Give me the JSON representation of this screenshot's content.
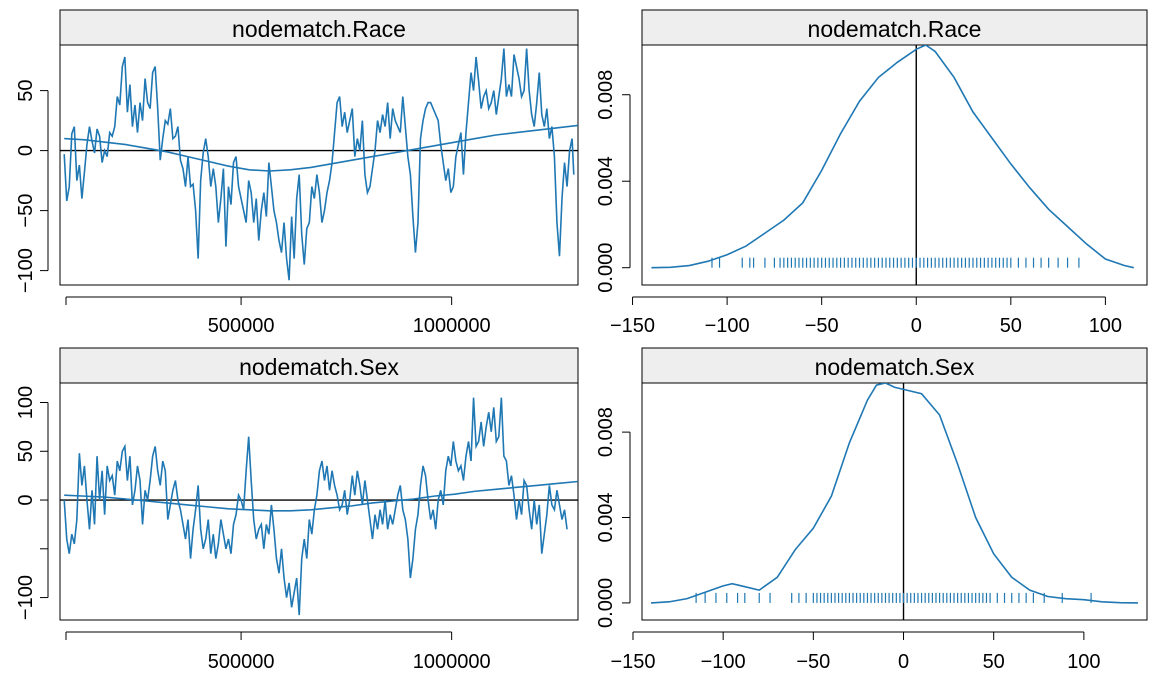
{
  "line_color": "#1f78b4",
  "strip_color": "#eeeeee",
  "chart_data": [
    {
      "type": "line",
      "title": "nodematch.Race",
      "xlim": [
        70000,
        1300000
      ],
      "ylim": [
        -112,
        88
      ],
      "x_ticks": [
        500000,
        1000000
      ],
      "x_tick_labels": [
        "500000",
        "1000000"
      ],
      "y_ticks": [
        -100,
        -50,
        0,
        50
      ],
      "y_tick_labels": [
        "−100",
        "−50",
        "0",
        "50"
      ],
      "x": [
        80000,
        86000,
        92000,
        98000,
        104000,
        110000,
        116000,
        122000,
        128000,
        134000,
        140000,
        146000,
        152000,
        158000,
        164000,
        170000,
        176000,
        182000,
        188000,
        194000,
        200000,
        206000,
        212000,
        218000,
        224000,
        230000,
        236000,
        242000,
        248000,
        254000,
        260000,
        266000,
        272000,
        278000,
        284000,
        290000,
        296000,
        302000,
        308000,
        314000,
        320000,
        326000,
        332000,
        338000,
        344000,
        350000,
        356000,
        362000,
        368000,
        374000,
        380000,
        386000,
        392000,
        398000,
        404000,
        410000,
        416000,
        422000,
        428000,
        434000,
        440000,
        446000,
        452000,
        458000,
        464000,
        470000,
        476000,
        482000,
        488000,
        494000,
        500000,
        506000,
        512000,
        518000,
        524000,
        530000,
        536000,
        542000,
        548000,
        554000,
        560000,
        566000,
        572000,
        578000,
        584000,
        590000,
        596000,
        602000,
        608000,
        614000,
        620000,
        626000,
        632000,
        638000,
        644000,
        650000,
        656000,
        662000,
        668000,
        674000,
        680000,
        686000,
        692000,
        698000,
        704000,
        710000,
        716000,
        722000,
        728000,
        734000,
        740000,
        746000,
        752000,
        758000,
        764000,
        770000,
        776000,
        782000,
        788000,
        794000,
        800000,
        806000,
        812000,
        818000,
        824000,
        830000,
        836000,
        842000,
        848000,
        854000,
        860000,
        866000,
        872000,
        878000,
        884000,
        890000,
        896000,
        902000,
        908000,
        914000,
        920000,
        926000,
        932000,
        938000,
        944000,
        950000,
        956000,
        962000,
        968000,
        974000,
        980000,
        986000,
        992000,
        998000,
        1004000,
        1010000,
        1016000,
        1022000,
        1028000,
        1034000,
        1040000,
        1046000,
        1052000,
        1058000,
        1064000,
        1070000,
        1076000,
        1082000,
        1088000,
        1094000,
        1100000,
        1106000,
        1112000,
        1118000,
        1124000,
        1130000,
        1136000,
        1142000,
        1148000,
        1154000,
        1160000,
        1166000,
        1172000,
        1178000,
        1184000,
        1190000,
        1196000,
        1202000,
        1208000,
        1214000,
        1220000,
        1226000,
        1232000,
        1238000,
        1244000,
        1250000,
        1256000,
        1262000,
        1268000,
        1274000,
        1280000,
        1286000,
        1290000
      ],
      "trace": [
        -3,
        -42,
        -30,
        14,
        20,
        -25,
        -12,
        -40,
        -18,
        5,
        20,
        8,
        -2,
        18,
        12,
        -10,
        0,
        -5,
        15,
        12,
        20,
        45,
        38,
        70,
        78,
        32,
        55,
        20,
        38,
        15,
        40,
        25,
        60,
        40,
        35,
        65,
        70,
        35,
        -8,
        10,
        25,
        22,
        35,
        10,
        12,
        20,
        -8,
        -15,
        -30,
        -5,
        -30,
        -28,
        -50,
        -90,
        -25,
        -2,
        10,
        -5,
        -30,
        -15,
        -30,
        -60,
        -40,
        -15,
        -80,
        -30,
        -45,
        -10,
        -5,
        -30,
        -40,
        -50,
        -60,
        -25,
        -35,
        -60,
        -40,
        -75,
        -50,
        -35,
        -55,
        -10,
        -30,
        -50,
        -60,
        -75,
        -85,
        -60,
        -90,
        -108,
        -55,
        -90,
        -40,
        -20,
        -70,
        -95,
        -65,
        -60,
        -30,
        -40,
        -20,
        -35,
        -60,
        -50,
        -35,
        -25,
        -10,
        15,
        40,
        45,
        20,
        32,
        15,
        25,
        35,
        -5,
        10,
        0,
        25,
        -20,
        -35,
        -30,
        -15,
        0,
        25,
        15,
        30,
        20,
        40,
        10,
        35,
        25,
        20,
        15,
        45,
        20,
        -5,
        -20,
        -55,
        -85,
        -60,
        10,
        25,
        35,
        40,
        40,
        35,
        30,
        25,
        5,
        -10,
        -25,
        -15,
        -35,
        -30,
        -5,
        5,
        15,
        -20,
        15,
        40,
        65,
        50,
        78,
        58,
        35,
        45,
        50,
        35,
        40,
        50,
        30,
        45,
        60,
        85,
        45,
        55,
        45,
        80,
        70,
        60,
        45,
        50,
        85,
        50,
        30,
        20,
        40,
        65,
        30,
        20,
        35,
        10,
        20,
        -5,
        -60,
        -88,
        -40,
        -10,
        -30,
        0,
        10,
        -20,
        -40,
        -15,
        -20
      ],
      "smooth": [
        10,
        9,
        7,
        5,
        2,
        -1,
        -5,
        -9,
        -13,
        -16,
        -17,
        -16,
        -14,
        -11,
        -8,
        -5,
        -2,
        1,
        4,
        7,
        10,
        13,
        15,
        17,
        19,
        21
      ],
      "smooth_x_step": 48800,
      "rug": []
    },
    {
      "type": "area",
      "title": "nodematch.Race",
      "xlim": [
        -145,
        122
      ],
      "ylim": [
        -0.0008,
        0.0103
      ],
      "x_ticks": [
        -150,
        -100,
        -50,
        0,
        50,
        100
      ],
      "x_tick_labels": [
        "−150",
        "−100",
        "−50",
        "0",
        "50",
        "100"
      ],
      "y_ticks": [
        0,
        0.004,
        0.008
      ],
      "y_tick_labels": [
        "0.000",
        "0.004",
        "0.008"
      ],
      "density_x": [
        -140,
        -130,
        -120,
        -110,
        -100,
        -90,
        -80,
        -70,
        -60,
        -50,
        -40,
        -30,
        -20,
        -10,
        0,
        5,
        10,
        20,
        30,
        40,
        50,
        60,
        70,
        80,
        90,
        100,
        110,
        115
      ],
      "density_y": [
        0,
        2e-05,
        0.0001,
        0.0003,
        0.0006,
        0.001,
        0.0016,
        0.0022,
        0.003,
        0.0045,
        0.0062,
        0.0077,
        0.0088,
        0.0095,
        0.0101,
        0.0103,
        0.01,
        0.0088,
        0.0072,
        0.006,
        0.0048,
        0.0037,
        0.0027,
        0.0019,
        0.0011,
        0.0004,
        0.0001,
        0
      ],
      "rug": [
        -108,
        -104,
        -92,
        -88,
        -86,
        -80,
        -75,
        -72,
        -70,
        -68,
        -66,
        -64,
        -62,
        -60,
        -58,
        -56,
        -54,
        -52,
        -50,
        -48,
        -46,
        -44,
        -42,
        -40,
        -38,
        -36,
        -34,
        -32,
        -30,
        -28,
        -26,
        -24,
        -22,
        -20,
        -18,
        -16,
        -14,
        -12,
        -10,
        -8,
        -6,
        -4,
        -2,
        0,
        2,
        4,
        6,
        8,
        10,
        12,
        14,
        16,
        18,
        20,
        22,
        24,
        26,
        28,
        30,
        32,
        34,
        36,
        38,
        40,
        42,
        44,
        46,
        48,
        50,
        54,
        58,
        62,
        66,
        70,
        75,
        80,
        86
      ]
    },
    {
      "type": "line",
      "title": "nodematch.Sex",
      "xlim": [
        70000,
        1300000
      ],
      "ylim": [
        -123,
        120
      ],
      "x_ticks": [
        500000,
        1000000
      ],
      "x_tick_labels": [
        "500000",
        "1000000"
      ],
      "y_ticks": [
        -100,
        -50,
        0,
        50,
        100
      ],
      "y_tick_labels": [
        "−100",
        "",
        "0",
        "50",
        "100"
      ],
      "x": [
        80000,
        86000,
        92000,
        98000,
        104000,
        110000,
        116000,
        122000,
        128000,
        134000,
        140000,
        146000,
        152000,
        158000,
        164000,
        170000,
        176000,
        182000,
        188000,
        194000,
        200000,
        206000,
        212000,
        218000,
        224000,
        230000,
        236000,
        242000,
        248000,
        254000,
        260000,
        266000,
        272000,
        278000,
        284000,
        290000,
        296000,
        302000,
        308000,
        314000,
        320000,
        326000,
        332000,
        338000,
        344000,
        350000,
        356000,
        362000,
        368000,
        374000,
        380000,
        386000,
        392000,
        398000,
        404000,
        410000,
        416000,
        422000,
        428000,
        434000,
        440000,
        446000,
        452000,
        458000,
        464000,
        470000,
        476000,
        482000,
        488000,
        494000,
        500000,
        506000,
        512000,
        518000,
        524000,
        530000,
        536000,
        542000,
        548000,
        554000,
        560000,
        566000,
        572000,
        578000,
        584000,
        590000,
        596000,
        602000,
        608000,
        614000,
        620000,
        626000,
        632000,
        638000,
        644000,
        650000,
        656000,
        662000,
        668000,
        674000,
        680000,
        686000,
        692000,
        698000,
        704000,
        710000,
        716000,
        722000,
        728000,
        734000,
        740000,
        746000,
        752000,
        758000,
        764000,
        770000,
        776000,
        782000,
        788000,
        794000,
        800000,
        806000,
        812000,
        818000,
        824000,
        830000,
        836000,
        842000,
        848000,
        854000,
        860000,
        866000,
        872000,
        878000,
        884000,
        890000,
        896000,
        902000,
        908000,
        914000,
        920000,
        926000,
        932000,
        938000,
        944000,
        950000,
        956000,
        962000,
        968000,
        974000,
        980000,
        986000,
        992000,
        998000,
        1004000,
        1010000,
        1016000,
        1022000,
        1028000,
        1034000,
        1040000,
        1046000,
        1052000,
        1058000,
        1064000,
        1070000,
        1076000,
        1082000,
        1088000,
        1094000,
        1100000,
        1106000,
        1112000,
        1118000,
        1124000,
        1130000,
        1136000,
        1142000,
        1148000,
        1154000,
        1160000,
        1166000,
        1172000,
        1178000,
        1184000,
        1190000,
        1196000,
        1202000,
        1208000,
        1214000,
        1220000,
        1226000,
        1232000,
        1238000,
        1244000,
        1250000,
        1256000,
        1262000,
        1268000,
        1274000,
        1280000,
        1286000,
        1290000
      ],
      "trace": [
        0,
        -40,
        -55,
        -35,
        -45,
        -20,
        48,
        15,
        35,
        0,
        -30,
        10,
        -25,
        45,
        0,
        30,
        -15,
        35,
        20,
        25,
        5,
        40,
        30,
        50,
        55,
        20,
        45,
        -5,
        10,
        35,
        20,
        -25,
        10,
        0,
        20,
        45,
        55,
        30,
        15,
        40,
        30,
        -20,
        -5,
        10,
        20,
        0,
        -10,
        -25,
        -40,
        -20,
        -60,
        -30,
        -10,
        15,
        -30,
        -50,
        -40,
        -20,
        -55,
        -35,
        -60,
        -45,
        -20,
        -35,
        -50,
        -40,
        -55,
        -25,
        -15,
        5,
        0,
        -10,
        30,
        65,
        20,
        -20,
        -40,
        -30,
        -25,
        -50,
        -25,
        -35,
        -5,
        -30,
        -60,
        -75,
        -50,
        -80,
        -100,
        -85,
        -110,
        -95,
        -80,
        -118,
        -60,
        -40,
        -60,
        -20,
        -35,
        -10,
        5,
        30,
        40,
        20,
        35,
        10,
        30,
        15,
        5,
        -10,
        -5,
        10,
        -15,
        0,
        25,
        5,
        30,
        15,
        -5,
        20,
        0,
        -20,
        -40,
        -15,
        -30,
        -10,
        -25,
        0,
        -30,
        -15,
        -25,
        -10,
        5,
        15,
        -10,
        -20,
        -40,
        -80,
        -60,
        -30,
        -15,
        15,
        35,
        25,
        0,
        -20,
        -10,
        -30,
        0,
        10,
        -5,
        30,
        45,
        35,
        60,
        40,
        30,
        35,
        20,
        45,
        60,
        40,
        105,
        55,
        60,
        80,
        55,
        75,
        90,
        70,
        95,
        60,
        65,
        105,
        45,
        40,
        15,
        25,
        5,
        -20,
        0,
        -15,
        20,
        15,
        -10,
        -30,
        0,
        -25,
        -5,
        -55,
        -35,
        -15,
        15,
        -5,
        -10,
        10,
        -5,
        -20,
        -10,
        -30
      ],
      "smooth": [
        5,
        4,
        3,
        1,
        -1,
        -3,
        -5,
        -7,
        -9,
        -10,
        -11,
        -11,
        -10,
        -8,
        -6,
        -3,
        -1,
        1,
        4,
        6,
        9,
        11,
        13,
        15,
        17,
        19
      ],
      "smooth_x_step": 48800,
      "rug": []
    },
    {
      "type": "area",
      "title": "nodematch.Sex",
      "xlim": [
        -145,
        135
      ],
      "ylim": [
        -0.0008,
        0.0103
      ],
      "x_ticks": [
        -150,
        -100,
        -50,
        0,
        50,
        100
      ],
      "x_tick_labels": [
        "−150",
        "−100",
        "−50",
        "0",
        "50",
        "100"
      ],
      "y_ticks": [
        0,
        0.004,
        0.008
      ],
      "y_tick_labels": [
        "0.000",
        "0.004",
        "0.008"
      ],
      "density_x": [
        -140,
        -130,
        -120,
        -110,
        -100,
        -95,
        -90,
        -80,
        -70,
        -60,
        -50,
        -40,
        -30,
        -20,
        -15,
        -10,
        -5,
        0,
        10,
        20,
        30,
        40,
        50,
        60,
        70,
        80,
        90,
        100,
        110,
        120,
        130
      ],
      "density_y": [
        0,
        5e-05,
        0.0002,
        0.0005,
        0.0008,
        0.0009,
        0.0008,
        0.0006,
        0.0012,
        0.0025,
        0.0035,
        0.005,
        0.0075,
        0.0095,
        0.0102,
        0.0103,
        0.0101,
        0.01,
        0.0098,
        0.0088,
        0.0065,
        0.004,
        0.0023,
        0.0012,
        0.0006,
        0.0003,
        0.0002,
        0.00015,
        5e-05,
        1e-05,
        0
      ],
      "rug": [
        -115,
        -110,
        -104,
        -98,
        -92,
        -88,
        -80,
        -74,
        -62,
        -58,
        -54,
        -50,
        -48,
        -46,
        -44,
        -42,
        -40,
        -38,
        -36,
        -34,
        -32,
        -30,
        -28,
        -26,
        -24,
        -22,
        -20,
        -18,
        -16,
        -14,
        -12,
        -10,
        -8,
        -6,
        -4,
        -2,
        0,
        2,
        4,
        6,
        8,
        10,
        12,
        14,
        16,
        18,
        20,
        22,
        24,
        26,
        28,
        30,
        32,
        34,
        36,
        38,
        40,
        42,
        44,
        46,
        48,
        52,
        56,
        60,
        64,
        68,
        72,
        78,
        88,
        104
      ]
    }
  ]
}
